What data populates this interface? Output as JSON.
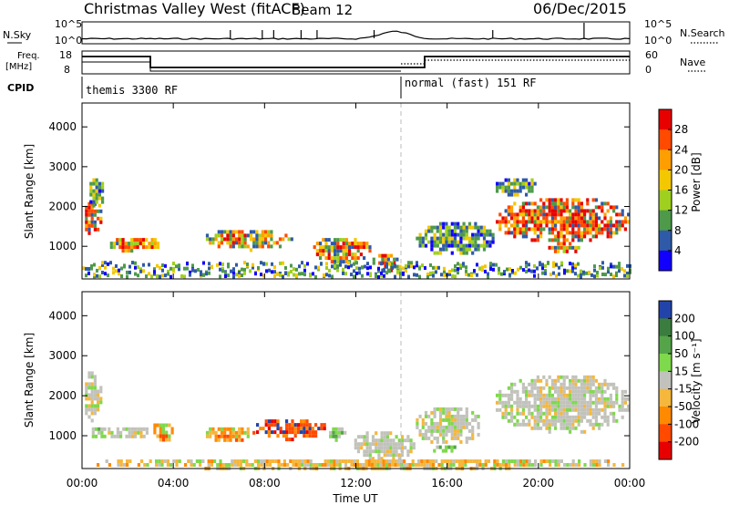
{
  "header": {
    "title": "Christmas Valley West (fitACF)",
    "beam": "Beam 12",
    "date": "06/Dec/2015"
  },
  "labels": {
    "nsky": "N.Sky",
    "nsearch": "N.Search",
    "freq_line1": "Freq.",
    "freq_line2": "[MHz]",
    "nave": "Nave",
    "cpid": "CPID",
    "xlabel": "Time UT",
    "power_ylabel": "Slant Range [km]",
    "vel_ylabel": "Slant Range [km]",
    "power_cbar_label": "Power [dB]",
    "vel_cbar_label": "Velocity [m s⁻¹]"
  },
  "noise_axis": {
    "left_ticks": [
      "10^5",
      "10^0"
    ],
    "right_ticks": [
      "10^5",
      "10^0"
    ]
  },
  "freq_axis": {
    "left_ticks": [
      "18",
      "8"
    ],
    "right_ticks": [
      "60",
      "0"
    ]
  },
  "cpid_segments": [
    {
      "label": "themis 3300 RF",
      "start_hour": 0
    },
    {
      "label": "normal (fast) 151 RF",
      "start_hour": 14
    }
  ],
  "chart_data": {
    "type": "heatmap",
    "x_axis": {
      "range_hours": [
        0,
        24
      ],
      "tick_labels": [
        "00:00",
        "04:00",
        "08:00",
        "12:00",
        "16:00",
        "20:00",
        "00:00"
      ]
    },
    "y_axis": {
      "range_km": [
        180,
        4600
      ],
      "tick_values": [
        1000,
        2000,
        3000,
        4000
      ]
    },
    "power_colorbar": {
      "ticks": [
        "28",
        "24",
        "20",
        "16",
        "12",
        "8",
        "4"
      ],
      "colors": [
        "#e80000",
        "#ff4a00",
        "#ff9e00",
        "#f3c800",
        "#9fd020",
        "#4e9a4a",
        "#2f5aa8",
        "#1200ff"
      ]
    },
    "velocity_colorbar": {
      "ticks": [
        "200",
        "100",
        "50",
        "15",
        "-15",
        "-50",
        "-100",
        "-200"
      ],
      "colors": [
        "#2244aa",
        "#3b7d3f",
        "#55a44a",
        "#7ed94c",
        "#c2c2bc",
        "#f5b73c",
        "#ff8a00",
        "#ff4a00",
        "#e80000"
      ]
    },
    "power_blobs": [
      {
        "t0": 0.0,
        "t1": 0.8,
        "r0": 1300,
        "r1": 2200,
        "level": "strong"
      },
      {
        "t0": 0.2,
        "t1": 1.0,
        "r0": 2000,
        "r1": 2800,
        "level": "weak"
      },
      {
        "t0": 1.1,
        "t1": 3.4,
        "r0": 900,
        "r1": 1300,
        "level": "medium"
      },
      {
        "t0": 5.3,
        "t1": 9.2,
        "r0": 950,
        "r1": 1500,
        "level": "medium"
      },
      {
        "t0": 10.0,
        "t1": 12.6,
        "r0": 600,
        "r1": 1300,
        "level": "medium"
      },
      {
        "t0": 12.6,
        "t1": 14.0,
        "r0": 350,
        "r1": 900,
        "level": "strong"
      },
      {
        "t0": 14.5,
        "t1": 18.0,
        "r0": 800,
        "r1": 1700,
        "level": "weak"
      },
      {
        "t0": 18.0,
        "t1": 24.0,
        "r0": 1100,
        "r1": 2300,
        "level": "strong"
      },
      {
        "t0": 18.0,
        "t1": 20.0,
        "r0": 2300,
        "r1": 2800,
        "level": "weak"
      },
      {
        "t0": 20.3,
        "t1": 21.8,
        "r0": 850,
        "r1": 1100,
        "level": "medium"
      }
    ],
    "velocity_blobs": [
      {
        "t0": 0.0,
        "t1": 0.8,
        "r0": 1400,
        "r1": 2700,
        "v": "gray"
      },
      {
        "t0": 0.3,
        "t1": 1.0,
        "r0": 950,
        "r1": 1300,
        "v": "green"
      },
      {
        "t0": 1.0,
        "t1": 3.0,
        "r0": 950,
        "r1": 1300,
        "v": "gray"
      },
      {
        "t0": 3.0,
        "t1": 4.0,
        "r0": 900,
        "r1": 1400,
        "v": "orange"
      },
      {
        "t0": 5.3,
        "t1": 7.5,
        "r0": 900,
        "r1": 1300,
        "v": "orange"
      },
      {
        "t0": 7.5,
        "t1": 10.7,
        "r0": 950,
        "r1": 1500,
        "v": "red"
      },
      {
        "t0": 10.7,
        "t1": 11.5,
        "r0": 900,
        "r1": 1300,
        "v": "green"
      },
      {
        "t0": 11.8,
        "t1": 14.5,
        "r0": 350,
        "r1": 1200,
        "v": "gray"
      },
      {
        "t0": 14.5,
        "t1": 17.5,
        "r0": 800,
        "r1": 1800,
        "v": "gray"
      },
      {
        "t0": 15.0,
        "t1": 16.5,
        "r0": 650,
        "r1": 850,
        "v": "green"
      },
      {
        "t0": 18.0,
        "t1": 24.0,
        "r0": 1100,
        "r1": 2600,
        "v": "gray"
      },
      {
        "t0": 0.0,
        "t1": 24.0,
        "r0": 200,
        "r1": 500,
        "v": "lowband"
      }
    ]
  }
}
